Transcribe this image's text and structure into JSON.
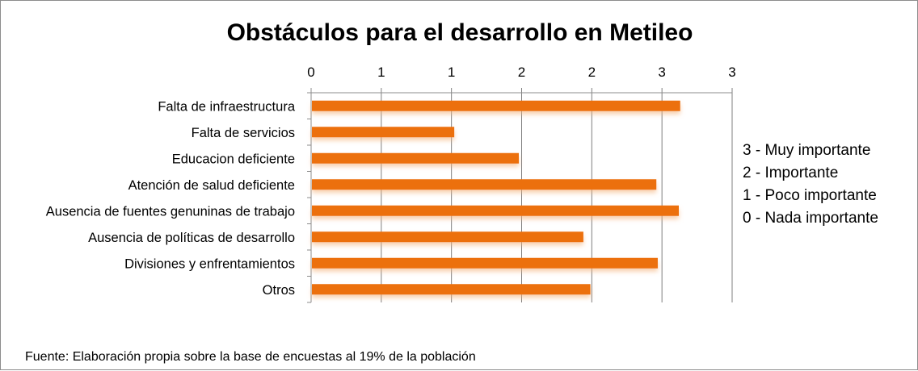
{
  "chart_data": {
    "type": "bar",
    "orientation": "horizontal",
    "title": "Obstáculos para el desarrollo en Metileo",
    "categories": [
      "Falta de infraestructura",
      "Falta de servicios",
      "Educacion deficiente",
      "Atención de salud deficiente",
      "Ausencia de fuentes genuninas de trabajo",
      "Ausencia de políticas de desarrollo",
      "Divisiones y enfrentamientos",
      "Otros"
    ],
    "values": [
      2.63,
      1.02,
      1.48,
      2.46,
      2.62,
      1.94,
      2.47,
      1.99
    ],
    "xlim": [
      0,
      3
    ],
    "x_tick_values": [
      0,
      0.5,
      1,
      1.5,
      2,
      2.5,
      3
    ],
    "x_tick_labels": [
      "0",
      "1",
      "1",
      "2",
      "2",
      "3",
      "3"
    ],
    "x_axis_position": "top",
    "grid": "vertical",
    "bar_color": "#ec700a",
    "legend_placement": "right",
    "legend": [
      "3 - Muy importante",
      "2 - Importante",
      "1 - Poco importante",
      "0 - Nada importante"
    ]
  },
  "source_note": "Fuente: Elaboración propia sobre la base de encuestas al 19%  de la población"
}
